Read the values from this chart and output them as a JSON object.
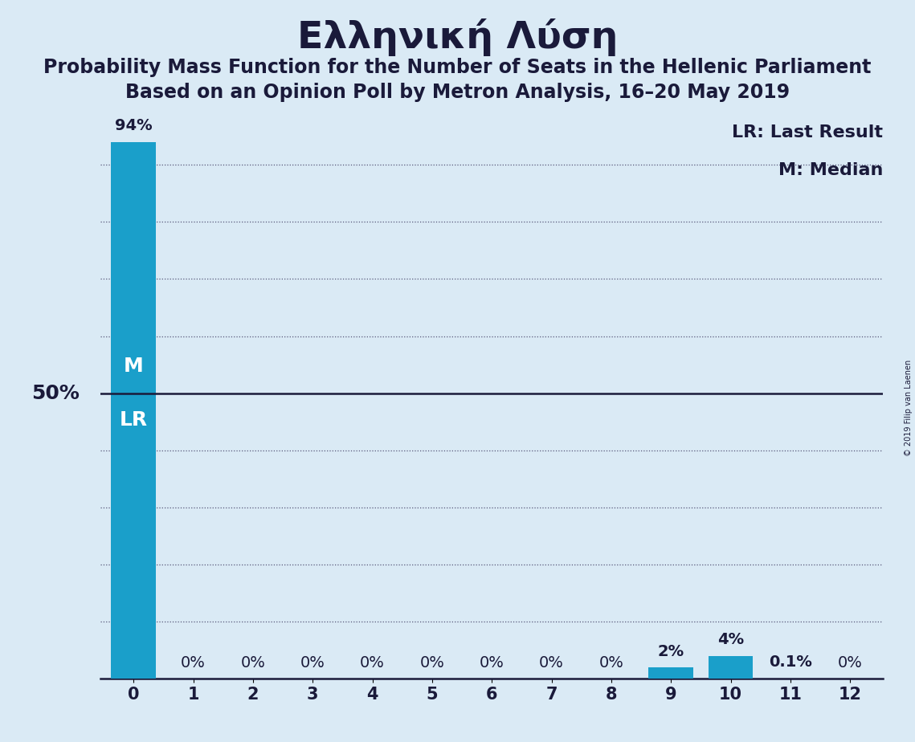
{
  "title": "Ελληνική Λύση",
  "subtitle1": "Probability Mass Function for the Number of Seats in the Hellenic Parliament",
  "subtitle2": "Based on an Opinion Poll by Metron Analysis, 16–20 May 2019",
  "copyright": "© 2019 Filip van Laenen",
  "categories": [
    0,
    1,
    2,
    3,
    4,
    5,
    6,
    7,
    8,
    9,
    10,
    11,
    12
  ],
  "values": [
    94,
    0,
    0,
    0,
    0,
    0,
    0,
    0,
    0,
    2,
    4,
    0.1,
    0
  ],
  "bar_labels": [
    "94%",
    "0%",
    "0%",
    "0%",
    "0%",
    "0%",
    "0%",
    "0%",
    "0%",
    "2%",
    "4%",
    "0.1%",
    "0%"
  ],
  "bar_color_main": "#1a9fca",
  "background_color": "#daeaf5",
  "ylabel_50": "50%",
  "median_label": "M",
  "lr_label": "LR",
  "legend_lr": "LR: Last Result",
  "legend_m": "M: Median",
  "ylim": [
    0,
    100
  ],
  "fifty_line": 50,
  "grid_lines": [
    10,
    20,
    30,
    40,
    60,
    70,
    80,
    90
  ],
  "title_fontsize": 34,
  "subtitle_fontsize": 17,
  "label_fontsize": 14,
  "tick_fontsize": 15,
  "annotation_fontsize": 16
}
